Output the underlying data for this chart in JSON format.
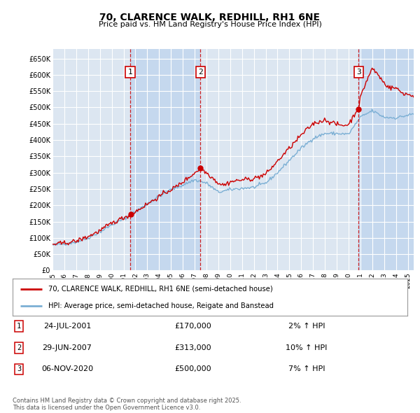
{
  "title": "70, CLARENCE WALK, REDHILL, RH1 6NE",
  "subtitle": "Price paid vs. HM Land Registry's House Price Index (HPI)",
  "ylabel_ticks": [
    "£0",
    "£50K",
    "£100K",
    "£150K",
    "£200K",
    "£250K",
    "£300K",
    "£350K",
    "£400K",
    "£450K",
    "£500K",
    "£550K",
    "£600K",
    "£650K"
  ],
  "ytick_values": [
    0,
    50000,
    100000,
    150000,
    200000,
    250000,
    300000,
    350000,
    400000,
    450000,
    500000,
    550000,
    600000,
    650000
  ],
  "ylim": [
    0,
    680000
  ],
  "xlim_start": 1995.0,
  "xlim_end": 2025.5,
  "background_color": "#ffffff",
  "plot_bg_color": "#dce6f1",
  "stripe_bg_color": "#c5d8ee",
  "grid_color": "#ffffff",
  "sale_color": "#cc0000",
  "hpi_color": "#7bafd4",
  "transactions": [
    {
      "date_num": 2001.56,
      "price": 170000,
      "label": "1"
    },
    {
      "date_num": 2007.49,
      "price": 313000,
      "label": "2"
    },
    {
      "date_num": 2020.85,
      "price": 500000,
      "label": "3"
    }
  ],
  "legend_sale_label": "70, CLARENCE WALK, REDHILL, RH1 6NE (semi-detached house)",
  "legend_hpi_label": "HPI: Average price, semi-detached house, Reigate and Banstead",
  "table_rows": [
    {
      "num": "1",
      "date": "24-JUL-2001",
      "price": "£170,000",
      "change": "2% ↑ HPI"
    },
    {
      "num": "2",
      "date": "29-JUN-2007",
      "price": "£313,000",
      "change": "10% ↑ HPI"
    },
    {
      "num": "3",
      "date": "06-NOV-2020",
      "price": "£500,000",
      "change": "7% ↑ HPI"
    }
  ],
  "footnote": "Contains HM Land Registry data © Crown copyright and database right 2025.\nThis data is licensed under the Open Government Licence v3.0.",
  "xtick_years": [
    1995,
    1996,
    1997,
    1998,
    1999,
    2000,
    2001,
    2002,
    2003,
    2004,
    2005,
    2006,
    2007,
    2008,
    2009,
    2010,
    2011,
    2012,
    2013,
    2014,
    2015,
    2016,
    2017,
    2018,
    2019,
    2020,
    2021,
    2022,
    2023,
    2024,
    2025
  ]
}
